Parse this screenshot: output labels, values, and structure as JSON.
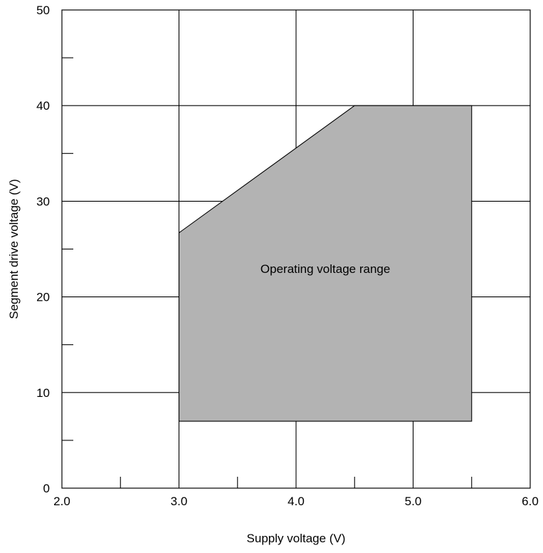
{
  "chart_data": {
    "type": "area",
    "title": "",
    "xlabel": "Supply voltage (V)",
    "ylabel": "Segment drive voltage (V)",
    "xlim": [
      2.0,
      6.0
    ],
    "ylim": [
      0,
      50
    ],
    "x_ticks": [
      {
        "value": 2.0,
        "label": "2.0"
      },
      {
        "value": 3.0,
        "label": "3.0"
      },
      {
        "value": 4.0,
        "label": "4.0"
      },
      {
        "value": 5.0,
        "label": "5.0"
      },
      {
        "value": 6.0,
        "label": "6.0"
      }
    ],
    "x_minor_ticks": [
      2.5,
      3.5,
      4.5,
      5.5
    ],
    "y_ticks": [
      {
        "value": 0,
        "label": "0"
      },
      {
        "value": 10,
        "label": "10"
      },
      {
        "value": 20,
        "label": "20"
      },
      {
        "value": 30,
        "label": "30"
      },
      {
        "value": 40,
        "label": "40"
      },
      {
        "value": 50,
        "label": "50"
      }
    ],
    "y_minor_ticks": [
      5,
      15,
      25,
      35,
      45
    ],
    "grid": true,
    "region": {
      "label": "Operating voltage range",
      "fill_color": "#b3b3b3",
      "vertices": [
        {
          "x": 3.0,
          "y": 7.0
        },
        {
          "x": 3.0,
          "y": 26.7
        },
        {
          "x": 4.5,
          "y": 40.0
        },
        {
          "x": 5.5,
          "y": 40.0
        },
        {
          "x": 5.5,
          "y": 7.0
        }
      ]
    }
  }
}
